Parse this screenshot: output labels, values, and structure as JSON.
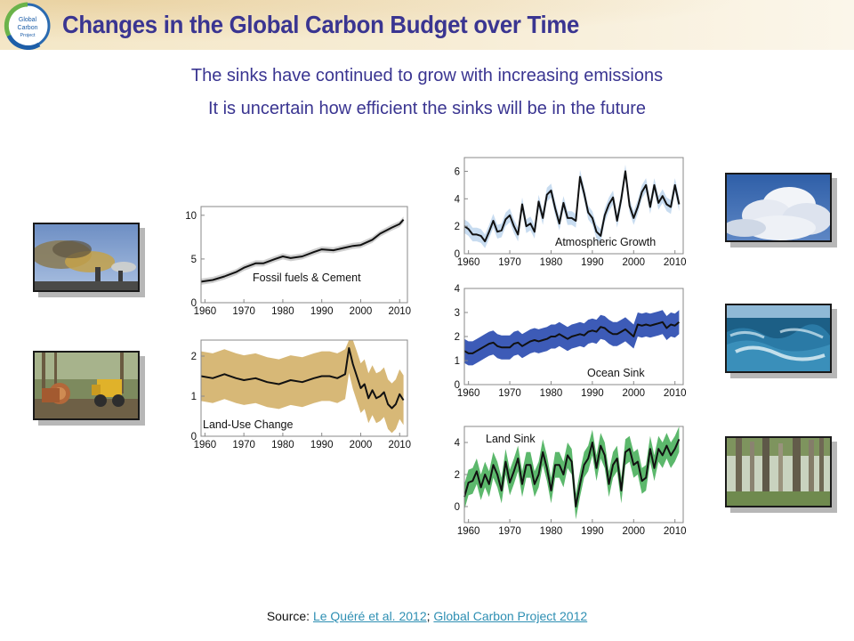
{
  "header": {
    "title": "Changes in the Global Carbon Budget over Time",
    "logo_text": [
      "Global",
      "Carbon",
      "Project"
    ]
  },
  "subtitles": {
    "line1": "The sinks have continued to grow with increasing emissions",
    "line2": "It is uncertain how efficient the sinks will be in the future"
  },
  "source": {
    "prefix": "Source: ",
    "link1": "Le Quéré et al. 2012",
    "separator": "; ",
    "link2": "Global Carbon Project 2012"
  },
  "images": [
    {
      "name": "smokestacks-photo",
      "subject": "industrial smokestacks"
    },
    {
      "name": "logging-photo",
      "subject": "logging machinery and felled logs"
    },
    {
      "name": "clouds-photo",
      "subject": "cumulus clouds"
    },
    {
      "name": "ocean-photo",
      "subject": "ocean waves"
    },
    {
      "name": "forest-photo",
      "subject": "forest"
    }
  ],
  "colors": {
    "title": "#3a3591",
    "fossil_band": "#cfcfcf",
    "land_use_band": "#d7b877",
    "atmospheric_band": "#c8dcf0",
    "ocean_band": "#3d5bb7",
    "land_sink_band": "#5cb86c",
    "line": "#111111"
  },
  "chart_data": [
    {
      "id": "fossil",
      "type": "line",
      "label": "Fossil fuels & Cement",
      "xlim": [
        1959,
        2012
      ],
      "ylim": [
        0,
        11
      ],
      "yticks": [
        0,
        5,
        10
      ],
      "xticks": [
        1960,
        1970,
        1980,
        1990,
        2000,
        2010
      ],
      "band": "#cfcfcf",
      "unc": 0.35,
      "years": [
        1959,
        1962,
        1965,
        1968,
        1970,
        1973,
        1975,
        1978,
        1980,
        1982,
        1985,
        1988,
        1990,
        1993,
        1996,
        1998,
        2000,
        2003,
        2005,
        2008,
        2010,
        2011
      ],
      "values": [
        2.4,
        2.6,
        3.0,
        3.5,
        4.0,
        4.5,
        4.5,
        5.0,
        5.3,
        5.1,
        5.3,
        5.8,
        6.1,
        6.0,
        6.3,
        6.5,
        6.6,
        7.2,
        7.9,
        8.6,
        9.0,
        9.5
      ]
    },
    {
      "id": "landuse",
      "type": "area",
      "label": "Land-Use Change",
      "xlim": [
        1959,
        2012
      ],
      "ylim": [
        0,
        2.4
      ],
      "yticks": [
        0,
        1,
        2
      ],
      "xticks": [
        1960,
        1970,
        1980,
        1990,
        2000,
        2010
      ],
      "band": "#d7b877",
      "unc": 0.62,
      "years": [
        1959,
        1962,
        1965,
        1968,
        1970,
        1973,
        1976,
        1979,
        1982,
        1985,
        1988,
        1990,
        1992,
        1994,
        1996,
        1997,
        1998,
        1999,
        2000,
        2001,
        2002,
        2003,
        2004,
        2005,
        2006,
        2007,
        2008,
        2009,
        2010,
        2011
      ],
      "values": [
        1.5,
        1.45,
        1.55,
        1.45,
        1.4,
        1.45,
        1.35,
        1.3,
        1.4,
        1.35,
        1.45,
        1.5,
        1.5,
        1.45,
        1.55,
        2.2,
        1.8,
        1.5,
        1.2,
        1.3,
        0.95,
        1.15,
        0.95,
        1.0,
        1.1,
        0.8,
        0.7,
        0.8,
        1.05,
        0.9
      ]
    },
    {
      "id": "atmospheric",
      "type": "line",
      "label": "Atmospheric Growth",
      "xlim": [
        1959,
        2012
      ],
      "ylim": [
        0,
        7
      ],
      "yticks": [
        0,
        2,
        4,
        6
      ],
      "xticks": [
        1960,
        1970,
        1980,
        1990,
        2000,
        2010
      ],
      "band": "#c8dcf0",
      "unc": 0.5,
      "years": [
        1959,
        1960,
        1961,
        1962,
        1963,
        1964,
        1965,
        1966,
        1967,
        1968,
        1969,
        1970,
        1971,
        1972,
        1973,
        1974,
        1975,
        1976,
        1977,
        1978,
        1979,
        1980,
        1981,
        1982,
        1983,
        1984,
        1985,
        1986,
        1987,
        1988,
        1989,
        1990,
        1991,
        1992,
        1993,
        1994,
        1995,
        1996,
        1997,
        1998,
        1999,
        2000,
        2001,
        2002,
        2003,
        2004,
        2005,
        2006,
        2007,
        2008,
        2009,
        2010,
        2011
      ],
      "values": [
        2.0,
        1.8,
        1.4,
        1.4,
        1.3,
        0.9,
        1.6,
        2.4,
        1.6,
        1.7,
        2.5,
        2.8,
        2.0,
        1.4,
        3.6,
        2.0,
        2.2,
        1.6,
        3.8,
        2.6,
        4.3,
        4.6,
        3.3,
        2.2,
        3.7,
        2.6,
        2.6,
        2.4,
        5.6,
        4.4,
        3.0,
        2.6,
        1.6,
        1.3,
        2.8,
        3.6,
        4.1,
        2.4,
        4.0,
        6.0,
        3.5,
        2.6,
        3.4,
        4.5,
        5.0,
        3.4,
        5.0,
        3.7,
        4.2,
        3.6,
        3.4,
        5.0,
        3.6
      ]
    },
    {
      "id": "ocean",
      "type": "line",
      "label": "Ocean Sink",
      "xlim": [
        1959,
        2012
      ],
      "ylim": [
        0,
        4
      ],
      "yticks": [
        0,
        1,
        2,
        3,
        4
      ],
      "xticks": [
        1960,
        1970,
        1980,
        1990,
        2000,
        2010
      ],
      "band": "#3d5bb7",
      "unc": 0.5,
      "years": [
        1959,
        1960,
        1961,
        1962,
        1963,
        1964,
        1965,
        1966,
        1967,
        1968,
        1969,
        1970,
        1971,
        1972,
        1973,
        1974,
        1975,
        1976,
        1977,
        1978,
        1979,
        1980,
        1981,
        1982,
        1983,
        1984,
        1985,
        1986,
        1987,
        1988,
        1989,
        1990,
        1991,
        1992,
        1993,
        1994,
        1995,
        1996,
        1997,
        1998,
        1999,
        2000,
        2001,
        2002,
        2003,
        2004,
        2005,
        2006,
        2007,
        2008,
        2009,
        2010,
        2011
      ],
      "values": [
        1.4,
        1.3,
        1.3,
        1.4,
        1.5,
        1.6,
        1.7,
        1.75,
        1.6,
        1.55,
        1.55,
        1.55,
        1.7,
        1.75,
        1.6,
        1.7,
        1.8,
        1.85,
        1.8,
        1.85,
        1.9,
        2.0,
        2.0,
        2.1,
        2.0,
        1.9,
        2.0,
        2.05,
        2.1,
        2.05,
        2.2,
        2.25,
        2.2,
        2.4,
        2.35,
        2.2,
        2.1,
        2.1,
        2.2,
        2.3,
        2.15,
        2.0,
        2.5,
        2.45,
        2.5,
        2.45,
        2.5,
        2.55,
        2.6,
        2.35,
        2.5,
        2.45,
        2.6
      ]
    },
    {
      "id": "landsink",
      "type": "line",
      "label": "Land Sink",
      "xlim": [
        1959,
        2012
      ],
      "ylim": [
        -1,
        5
      ],
      "yticks": [
        0,
        2,
        4
      ],
      "xticks": [
        1960,
        1970,
        1980,
        1990,
        2000,
        2010
      ],
      "band": "#5cb86c",
      "unc": 0.8,
      "years": [
        1959,
        1960,
        1961,
        1962,
        1963,
        1964,
        1965,
        1966,
        1967,
        1968,
        1969,
        1970,
        1971,
        1972,
        1973,
        1974,
        1975,
        1976,
        1977,
        1978,
        1979,
        1980,
        1981,
        1982,
        1983,
        1984,
        1985,
        1986,
        1987,
        1988,
        1989,
        1990,
        1991,
        1992,
        1993,
        1994,
        1995,
        1996,
        1997,
        1998,
        1999,
        2000,
        2001,
        2002,
        2003,
        2004,
        2005,
        2006,
        2007,
        2008,
        2009,
        2010,
        2011
      ],
      "values": [
        0.6,
        1.5,
        1.6,
        2.2,
        1.2,
        2.0,
        1.4,
        2.6,
        2.0,
        1.0,
        2.8,
        1.5,
        2.2,
        3.0,
        1.4,
        2.6,
        2.6,
        1.4,
        2.0,
        3.4,
        2.4,
        1.0,
        2.6,
        2.6,
        2.0,
        3.2,
        2.8,
        0.0,
        1.4,
        2.6,
        3.0,
        4.0,
        2.4,
        3.8,
        3.2,
        1.4,
        2.6,
        3.0,
        1.0,
        3.4,
        3.6,
        2.6,
        2.8,
        1.6,
        1.8,
        3.6,
        2.4,
        3.6,
        3.2,
        3.8,
        3.2,
        3.6,
        4.2
      ]
    }
  ]
}
